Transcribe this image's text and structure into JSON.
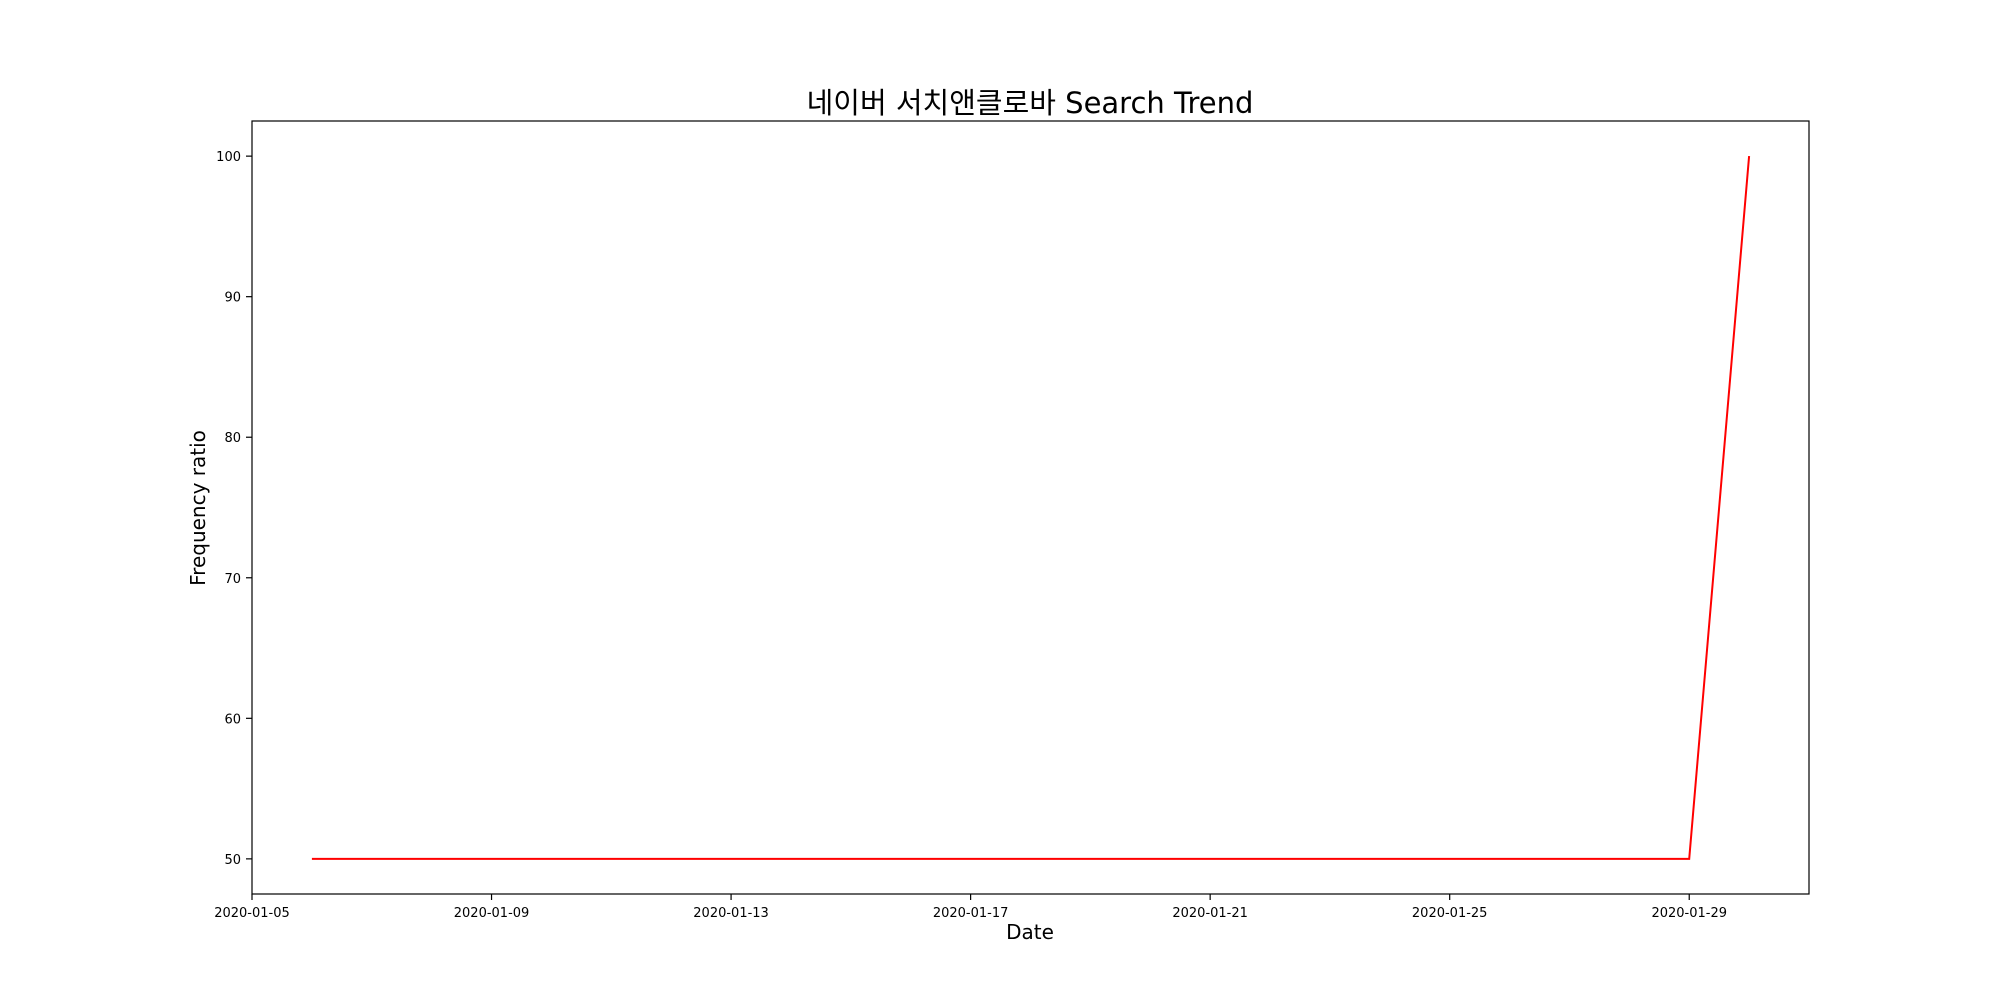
{
  "chart_data": {
    "type": "line",
    "title": "네이버 서치앤클로바 Search Trend",
    "xlabel": "Date",
    "ylabel": "Frequency ratio",
    "x_ticks": [
      "2020-01-05",
      "2020-01-09",
      "2020-01-13",
      "2020-01-17",
      "2020-01-21",
      "2020-01-25",
      "2020-01-29"
    ],
    "y_ticks": [
      50,
      60,
      70,
      80,
      90,
      100
    ],
    "xlim": [
      "2020-01-05",
      "2020-01-31"
    ],
    "ylim": [
      47.5,
      102.5
    ],
    "grid": false,
    "series": [
      {
        "color": "#ff0000",
        "points": [
          {
            "x": "2020-01-06",
            "y": 50
          },
          {
            "x": "2020-01-29",
            "y": 50
          },
          {
            "x": "2020-01-30",
            "y": 100
          }
        ]
      }
    ]
  }
}
